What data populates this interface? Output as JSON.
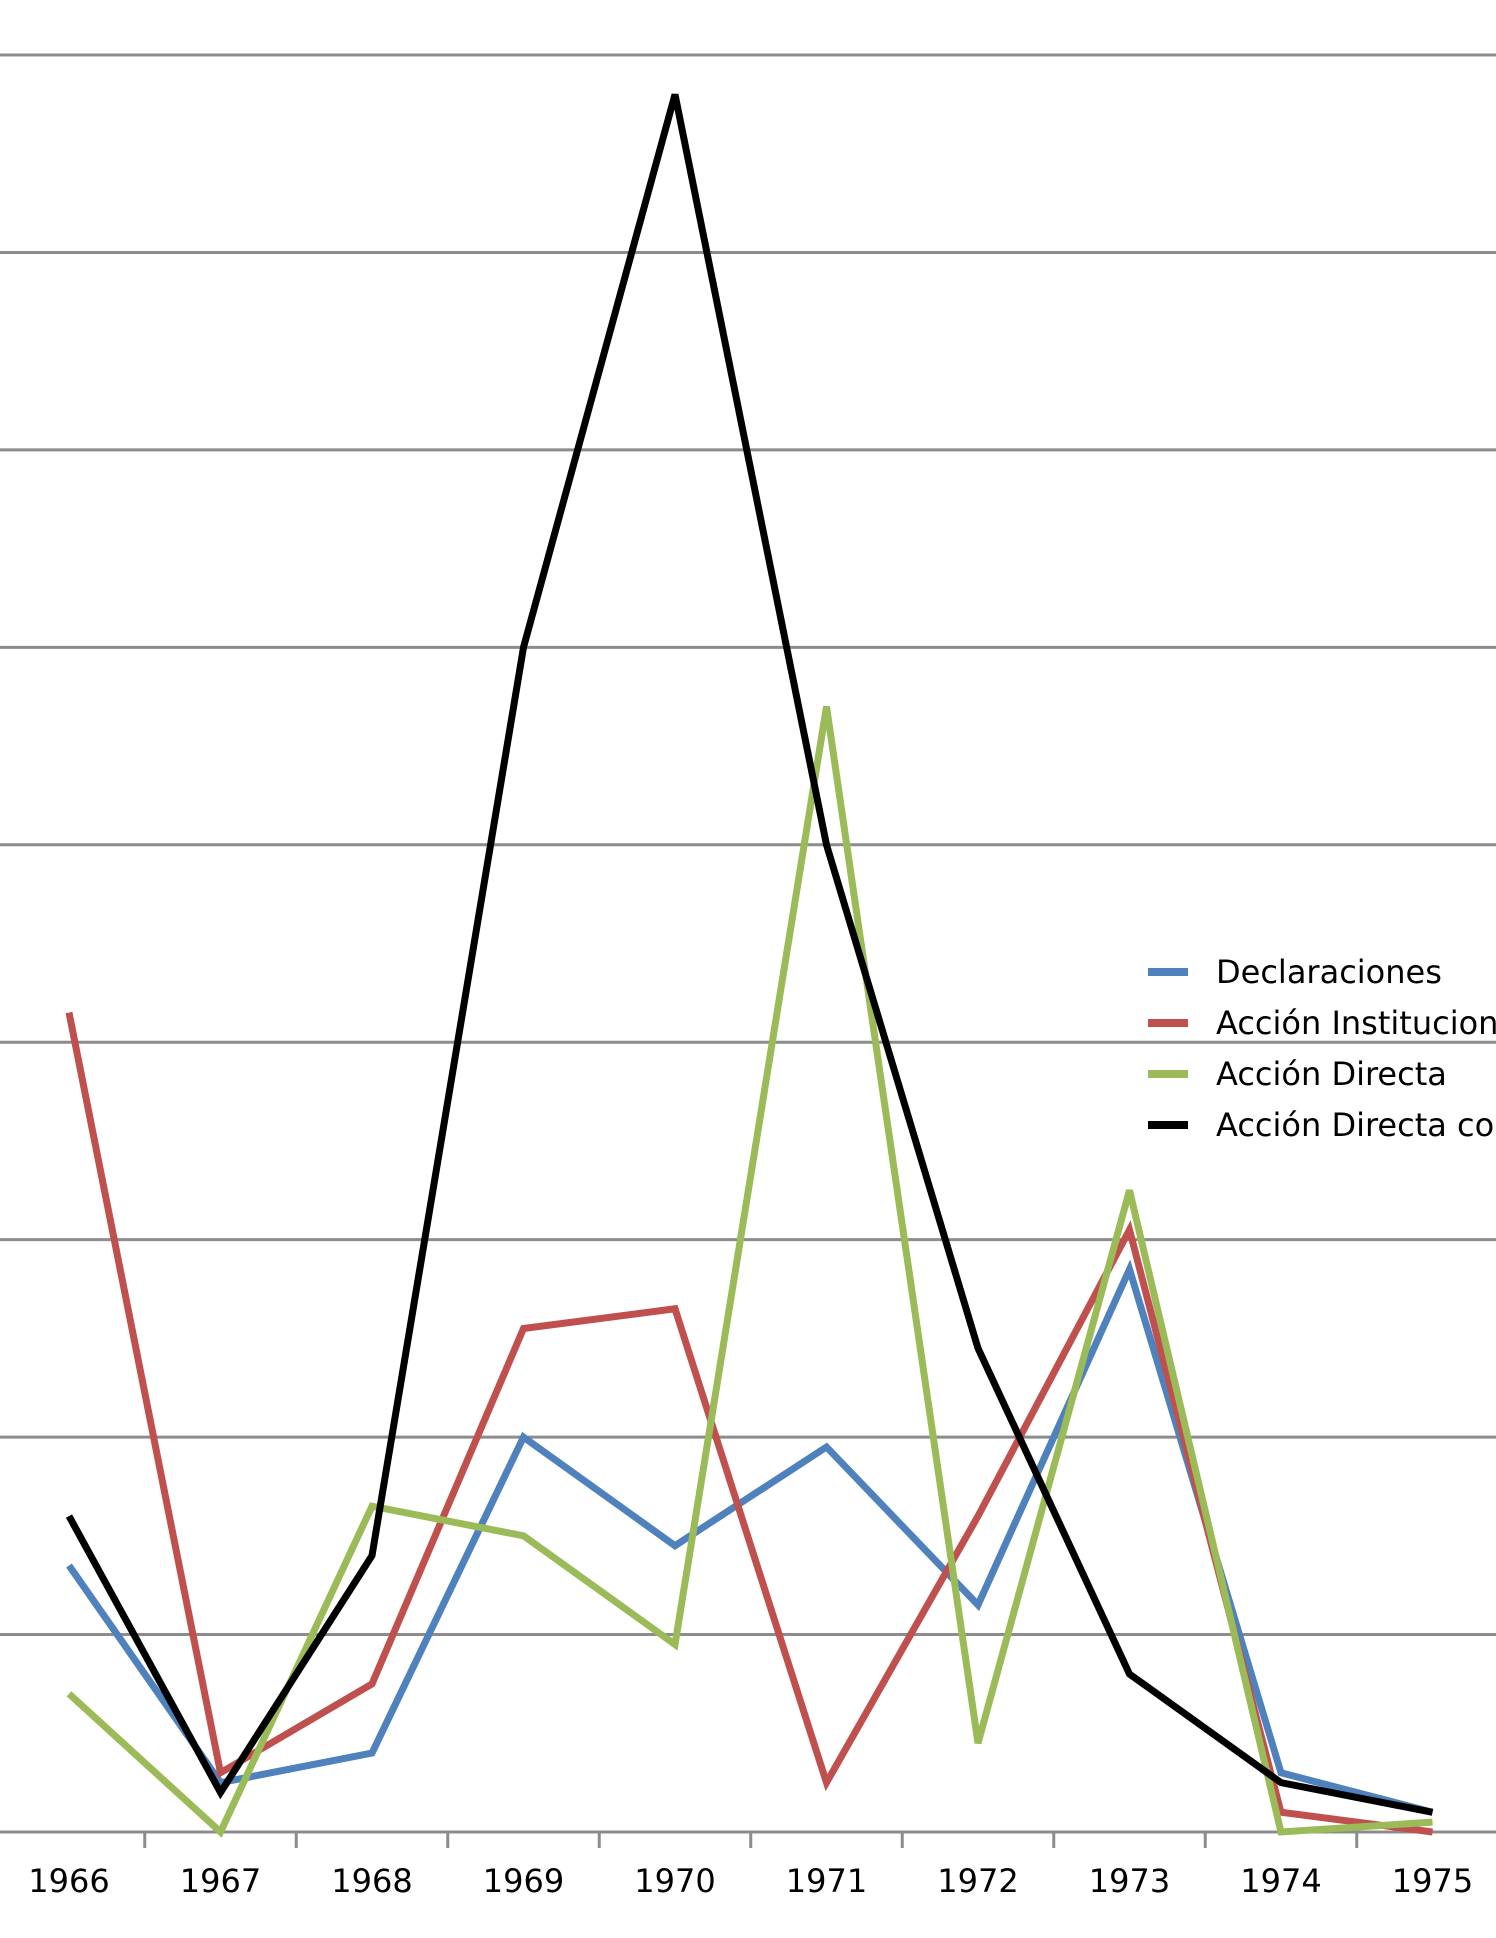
{
  "chart_data": {
    "type": "line",
    "categories": [
      "1966",
      "1967",
      "1968",
      "1969",
      "1970",
      "1971",
      "1972",
      "1973",
      "1974",
      "1975"
    ],
    "ylim": [
      0,
      18
    ],
    "grid": true,
    "legend_position": "right",
    "series": [
      {
        "name": "Declaraciones",
        "color": "#4f81bd",
        "values": [
          2.7,
          0.5,
          0.8,
          4.0,
          2.9,
          3.9,
          2.3,
          5.7,
          0.6,
          0.2
        ]
      },
      {
        "name": "Acción Institucional",
        "color": "#c0504d",
        "values": [
          8.3,
          0.6,
          1.5,
          5.1,
          5.3,
          0.5,
          3.2,
          6.1,
          0.2,
          0.0
        ]
      },
      {
        "name": "Acción Directa",
        "color": "#9bbb59",
        "values": [
          1.4,
          0.0,
          3.3,
          3.0,
          1.9,
          11.4,
          0.9,
          6.5,
          0.0,
          0.1
        ]
      },
      {
        "name": "Acción Directa con",
        "color": "#000000",
        "values": [
          3.2,
          0.4,
          2.8,
          12.0,
          17.6,
          10.0,
          4.9,
          1.6,
          0.5,
          0.2
        ]
      }
    ]
  }
}
